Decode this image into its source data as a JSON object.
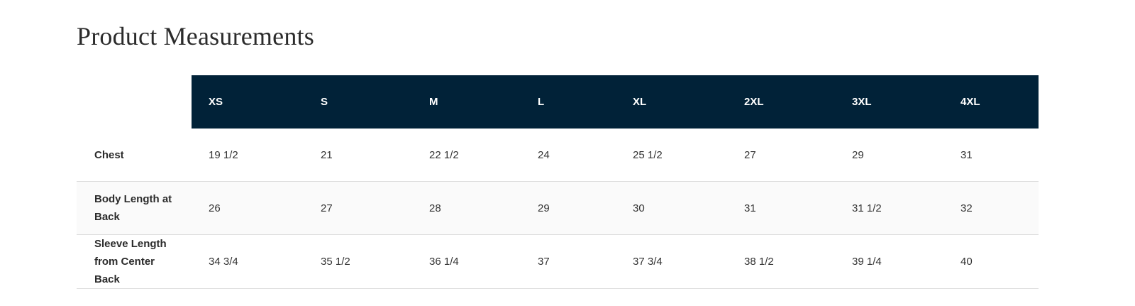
{
  "title": "Product Measurements",
  "table": {
    "sizes": [
      "XS",
      "S",
      "M",
      "L",
      "XL",
      "2XL",
      "3XL",
      "4XL"
    ],
    "rows": [
      {
        "label": "Chest",
        "values": [
          "19 1/2",
          "21",
          "22 1/2",
          "24",
          "25 1/2",
          "27",
          "29",
          "31"
        ]
      },
      {
        "label": "Body Length at Back",
        "values": [
          "26",
          "27",
          "28",
          "29",
          "30",
          "31",
          "31 1/2",
          "32"
        ]
      },
      {
        "label": "Sleeve Length from Center Back",
        "values": [
          "34 3/4",
          "35 1/2",
          "36 1/4",
          "37",
          "37 3/4",
          "38 1/2",
          "39 1/4",
          "40"
        ]
      }
    ]
  },
  "colors": {
    "header_bg": "#012238",
    "header_text": "#ffffff",
    "alt_row_bg": "#fafafa"
  }
}
